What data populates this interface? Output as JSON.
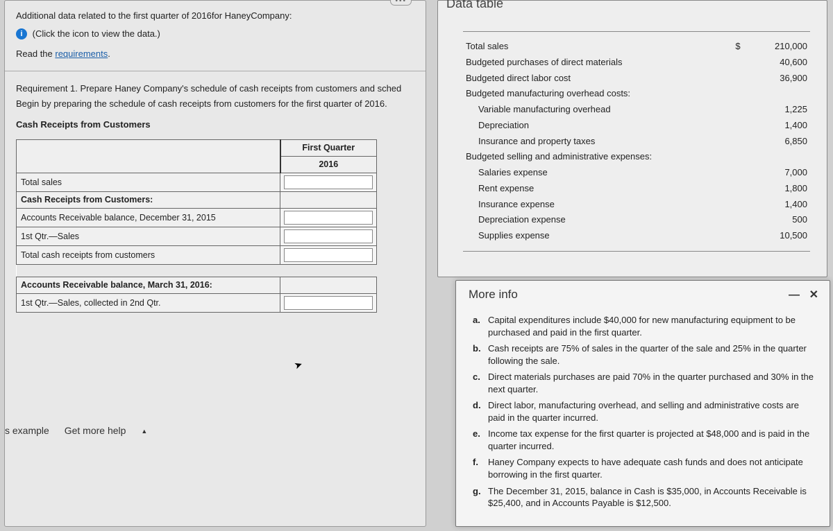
{
  "main": {
    "intro1": "Additional data related to the first quarter of 2016for HaneyCompany:",
    "intro2": "(Click the icon to view the data.)",
    "read_prefix": "Read the ",
    "requirements_link": "requirements",
    "req1_line1": "Requirement 1. Prepare Haney Company's schedule of cash receipts from customers and sched",
    "req1_line2": "Begin by preparing the schedule of cash receipts from customers for the first quarter of 2016.",
    "section_heading": "Cash Receipts from Customers",
    "col_header_l1": "First Quarter",
    "col_header_l2": "2016",
    "rows": {
      "r1": "Total sales",
      "r2": "Cash Receipts from Customers:",
      "r3": "Accounts Receivable balance, December 31, 2015",
      "r4": "1st Qtr.—Sales",
      "r5": "Total cash receipts from customers",
      "r6": "Accounts Receivable balance, March 31, 2016:",
      "r7": "1st Qtr.—Sales, collected in 2nd Qtr."
    },
    "footer_example": "s example",
    "footer_help": "Get more help"
  },
  "dataTable": {
    "title": "Data table",
    "currency": "$",
    "items": [
      {
        "label": "Total sales",
        "indent": 0,
        "hasCurrency": true,
        "value": "210,000"
      },
      {
        "label": "Budgeted purchases of direct materials",
        "indent": 0,
        "value": "40,600"
      },
      {
        "label": "Budgeted direct labor cost",
        "indent": 0,
        "value": "36,900"
      },
      {
        "label": "Budgeted manufacturing overhead costs:",
        "indent": 0,
        "value": ""
      },
      {
        "label": "Variable manufacturing overhead",
        "indent": 1,
        "value": "1,225"
      },
      {
        "label": "Depreciation",
        "indent": 1,
        "value": "1,400"
      },
      {
        "label": "Insurance and property taxes",
        "indent": 1,
        "value": "6,850"
      },
      {
        "label": "Budgeted selling and administrative expenses:",
        "indent": 0,
        "value": ""
      },
      {
        "label": "Salaries expense",
        "indent": 1,
        "value": "7,000"
      },
      {
        "label": "Rent expense",
        "indent": 1,
        "value": "1,800"
      },
      {
        "label": "Insurance expense",
        "indent": 1,
        "value": "1,400"
      },
      {
        "label": "Depreciation expense",
        "indent": 1,
        "value": "500"
      },
      {
        "label": "Supplies expense",
        "indent": 1,
        "value": "10,500"
      }
    ]
  },
  "moreInfo": {
    "title": "More info",
    "items": [
      {
        "letter": "a.",
        "text": "Capital expenditures include $40,000 for new manufacturing equipment to be purchased and paid in the first quarter."
      },
      {
        "letter": "b.",
        "text": "Cash receipts are 75% of sales in the quarter of the sale and 25% in the quarter following the sale."
      },
      {
        "letter": "c.",
        "text": "Direct materials purchases are paid 70% in the quarter purchased and 30% in the next quarter."
      },
      {
        "letter": "d.",
        "text": "Direct labor, manufacturing overhead, and selling and administrative costs are paid in the quarter incurred."
      },
      {
        "letter": "e.",
        "text": "Income tax expense for the first quarter is projected at $48,000 and is paid in the quarter incurred."
      },
      {
        "letter": "f.",
        "text": "Haney Company expects to have adequate cash funds and does not anticipate borrowing in the first quarter."
      },
      {
        "letter": "g.",
        "text": "The December 31, 2015, balance in Cash is $35,000, in Accounts Receivable is $25,400, and in Accounts Payable is $12,500."
      }
    ]
  },
  "colors": {
    "panel_bg": "#e8e8e8",
    "info_icon": "#1976d2",
    "link": "#1a5ea8",
    "border": "#888"
  }
}
